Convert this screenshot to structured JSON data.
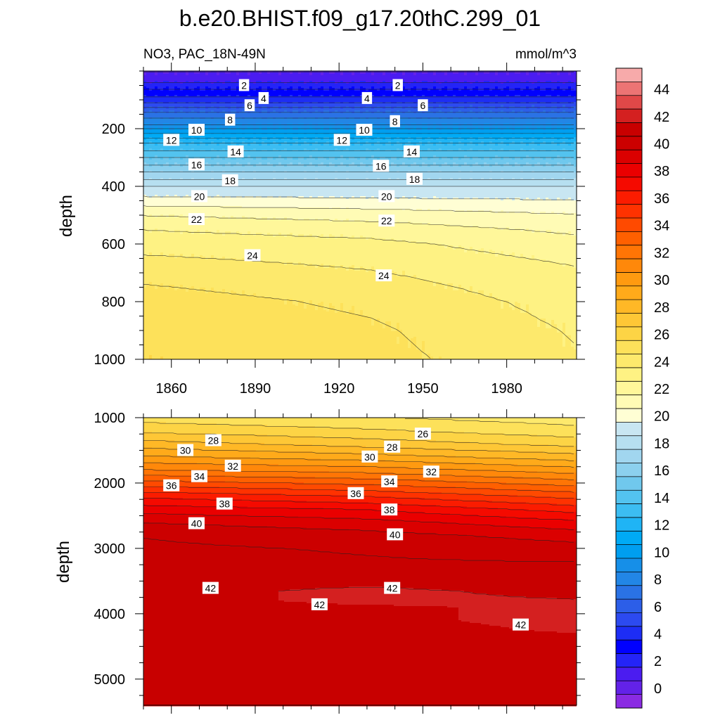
{
  "chart_data": [
    {
      "type": "heatmap",
      "title": "b.e20.BHIST.f09_g17.20thC.299_01",
      "left_subtitle": "NO3, PAC_18N-49N",
      "right_subtitle": "mmol/m^3",
      "xlabel": "",
      "ylabel": "depth",
      "x_ticks": [
        1860,
        1890,
        1920,
        1950,
        1980
      ],
      "xlim": [
        1850,
        2005
      ],
      "y_ticks": [
        200,
        400,
        600,
        800,
        1000
      ],
      "ylim": [
        1000,
        0
      ],
      "contour_interval": 1,
      "contour_labels": [
        {
          "x": 1886,
          "depth": 50,
          "value": "2"
        },
        {
          "x": 1941,
          "depth": 50,
          "value": "2"
        },
        {
          "x": 1893,
          "depth": 95,
          "value": "4"
        },
        {
          "x": 1930,
          "depth": 95,
          "value": "4"
        },
        {
          "x": 1888,
          "depth": 120,
          "value": "6"
        },
        {
          "x": 1950,
          "depth": 120,
          "value": "6"
        },
        {
          "x": 1869,
          "depth": 205,
          "value": "10"
        },
        {
          "x": 1881,
          "depth": 170,
          "value": "8"
        },
        {
          "x": 1929,
          "depth": 205,
          "value": "10"
        },
        {
          "x": 1940,
          "depth": 175,
          "value": "8"
        },
        {
          "x": 1860,
          "depth": 240,
          "value": "12"
        },
        {
          "x": 1921,
          "depth": 240,
          "value": "12"
        },
        {
          "x": 1883,
          "depth": 280,
          "value": "14"
        },
        {
          "x": 1946,
          "depth": 280,
          "value": "14"
        },
        {
          "x": 1869,
          "depth": 325,
          "value": "16"
        },
        {
          "x": 1935,
          "depth": 330,
          "value": "16"
        },
        {
          "x": 1881,
          "depth": 380,
          "value": "18"
        },
        {
          "x": 1947,
          "depth": 375,
          "value": "18"
        },
        {
          "x": 1870,
          "depth": 435,
          "value": "20"
        },
        {
          "x": 1937,
          "depth": 435,
          "value": "20"
        },
        {
          "x": 1869,
          "depth": 515,
          "value": "22"
        },
        {
          "x": 1937,
          "depth": 520,
          "value": "22"
        },
        {
          "x": 1889,
          "depth": 640,
          "value": "24"
        },
        {
          "x": 1936,
          "depth": 710,
          "value": "24"
        }
      ],
      "field": [
        {
          "x": 1850,
          "levels": [
            [
              0,
              1
            ],
            [
              25,
              1.5
            ],
            [
              50,
              2.5
            ],
            [
              75,
              3.5
            ],
            [
              100,
              4.5
            ],
            [
              125,
              6
            ],
            [
              150,
              7.5
            ],
            [
              175,
              8.5
            ],
            [
              200,
              10
            ],
            [
              225,
              11.5
            ],
            [
              250,
              13
            ],
            [
              300,
              15
            ],
            [
              350,
              17
            ],
            [
              400,
              19
            ],
            [
              450,
              20.5
            ],
            [
              500,
              22
            ],
            [
              550,
              23
            ],
            [
              600,
              23.6
            ],
            [
              700,
              24.7
            ],
            [
              800,
              25.5
            ],
            [
              900,
              25.8
            ],
            [
              1000,
              26
            ]
          ]
        },
        {
          "x": 1930,
          "levels": [
            [
              0,
              1
            ],
            [
              25,
              1.5
            ],
            [
              50,
              2.5
            ],
            [
              75,
              3.5
            ],
            [
              100,
              4.5
            ],
            [
              125,
              6
            ],
            [
              150,
              7.5
            ],
            [
              175,
              8.5
            ],
            [
              200,
              10
            ],
            [
              225,
              11.5
            ],
            [
              250,
              13
            ],
            [
              300,
              15
            ],
            [
              350,
              17
            ],
            [
              400,
              19
            ],
            [
              450,
              20.3
            ],
            [
              500,
              21.6
            ],
            [
              550,
              22.6
            ],
            [
              600,
              23.3
            ],
            [
              700,
              24.1
            ],
            [
              800,
              24.8
            ],
            [
              900,
              25.2
            ],
            [
              1000,
              25.4
            ]
          ]
        },
        {
          "x": 2005,
          "levels": [
            [
              0,
              1
            ],
            [
              25,
              1.5
            ],
            [
              50,
              2.5
            ],
            [
              75,
              3.5
            ],
            [
              100,
              4.5
            ],
            [
              125,
              6
            ],
            [
              150,
              7.5
            ],
            [
              175,
              8.5
            ],
            [
              200,
              10
            ],
            [
              225,
              11.5
            ],
            [
              250,
              13
            ],
            [
              300,
              15
            ],
            [
              350,
              17
            ],
            [
              400,
              19
            ],
            [
              450,
              20.1
            ],
            [
              500,
              21.1
            ],
            [
              550,
              21.8
            ],
            [
              600,
              22.4
            ],
            [
              700,
              23.2
            ],
            [
              800,
              23.6
            ],
            [
              900,
              23.9
            ],
            [
              1000,
              24.1
            ]
          ]
        }
      ]
    },
    {
      "type": "heatmap",
      "xlabel": "",
      "ylabel": "depth",
      "x_ticks": [
        1860,
        1890,
        1920,
        1950,
        1980
      ],
      "xlim": [
        1850,
        2005
      ],
      "y_ticks": [
        1000,
        2000,
        3000,
        4000,
        5000
      ],
      "ylim": [
        5400,
        1000
      ],
      "contour_interval": 1,
      "contour_labels": [
        {
          "x": 1950,
          "depth": 1250,
          "value": "26"
        },
        {
          "x": 1875,
          "depth": 1350,
          "value": "28"
        },
        {
          "x": 1939,
          "depth": 1450,
          "value": "28"
        },
        {
          "x": 1865,
          "depth": 1500,
          "value": "30"
        },
        {
          "x": 1931,
          "depth": 1600,
          "value": "30"
        },
        {
          "x": 1882,
          "depth": 1740,
          "value": "32"
        },
        {
          "x": 1953,
          "depth": 1830,
          "value": "32"
        },
        {
          "x": 1870,
          "depth": 1900,
          "value": "34"
        },
        {
          "x": 1938,
          "depth": 1980,
          "value": "34"
        },
        {
          "x": 1860,
          "depth": 2040,
          "value": "36"
        },
        {
          "x": 1926,
          "depth": 2160,
          "value": "36"
        },
        {
          "x": 1879,
          "depth": 2320,
          "value": "38"
        },
        {
          "x": 1938,
          "depth": 2410,
          "value": "38"
        },
        {
          "x": 1869,
          "depth": 2620,
          "value": "40"
        },
        {
          "x": 1940,
          "depth": 2790,
          "value": "40"
        },
        {
          "x": 1874,
          "depth": 3610,
          "value": "42"
        },
        {
          "x": 1939,
          "depth": 3610,
          "value": "42"
        },
        {
          "x": 1913,
          "depth": 3860,
          "value": "42"
        },
        {
          "x": 1985,
          "depth": 4170,
          "value": "42"
        }
      ],
      "field": [
        {
          "x": 1850,
          "levels": [
            [
              1000,
              25.6
            ],
            [
              1200,
              26.8
            ],
            [
              1400,
              28.5
            ],
            [
              1600,
              30.2
            ],
            [
              1800,
              32.1
            ],
            [
              2000,
              34.5
            ],
            [
              2200,
              36.8
            ],
            [
              2400,
              38.6
            ],
            [
              2600,
              40
            ],
            [
              2800,
              40.95
            ],
            [
              3000,
              41.2
            ],
            [
              3500,
              41.5
            ],
            [
              3600,
              41.7
            ],
            [
              4000,
              41.7
            ],
            [
              4500,
              41.5
            ],
            [
              5000,
              41.3
            ],
            [
              5400,
              41.2
            ]
          ]
        },
        {
          "x": 1930,
          "levels": [
            [
              1000,
              25.1
            ],
            [
              1200,
              26.2
            ],
            [
              1400,
              27.6
            ],
            [
              1600,
              29.5
            ],
            [
              1800,
              31.6
            ],
            [
              2000,
              33.8
            ],
            [
              2200,
              36
            ],
            [
              2400,
              38
            ],
            [
              2600,
              39.4
            ],
            [
              2800,
              40.4
            ],
            [
              3000,
              40.9
            ],
            [
              3400,
              41.3
            ],
            [
              3550,
              41.9
            ],
            [
              3650,
              42.2
            ],
            [
              3800,
              42.2
            ],
            [
              3900,
              41.9
            ],
            [
              4200,
              41.7
            ],
            [
              4600,
              41.5
            ],
            [
              5000,
              41.3
            ],
            [
              5400,
              41.2
            ]
          ]
        },
        {
          "x": 2005,
          "levels": [
            [
              1000,
              24.5
            ],
            [
              1200,
              25.4
            ],
            [
              1400,
              26.7
            ],
            [
              1600,
              28.5
            ],
            [
              1800,
              30.5
            ],
            [
              2000,
              32.6
            ],
            [
              2200,
              34.7
            ],
            [
              2400,
              36.6
            ],
            [
              2600,
              38.3
            ],
            [
              2800,
              39.6
            ],
            [
              3000,
              40.4
            ],
            [
              3200,
              41
            ],
            [
              3500,
              41.45
            ],
            [
              3800,
              42.05
            ],
            [
              4100,
              42.3
            ],
            [
              4250,
              42.1
            ],
            [
              4350,
              41.9
            ],
            [
              4700,
              41.6
            ],
            [
              5000,
              41.4
            ],
            [
              5400,
              41.2
            ]
          ]
        }
      ]
    }
  ],
  "colorbar": {
    "orientation": "vertical",
    "levels": [
      -1,
      0,
      1,
      2,
      3,
      4,
      5,
      6,
      7,
      8,
      9,
      10,
      11,
      12,
      13,
      14,
      15,
      16,
      17,
      18,
      19,
      20,
      21,
      22,
      23,
      24,
      25,
      26,
      27,
      28,
      29,
      30,
      31,
      32,
      33,
      34,
      35,
      36,
      37,
      38,
      39,
      40,
      41,
      42,
      43,
      44,
      45,
      46
    ],
    "tick_labels": [
      "0",
      "2",
      "4",
      "6",
      "8",
      "10",
      "12",
      "14",
      "16",
      "18",
      "20",
      "22",
      "24",
      "26",
      "28",
      "30",
      "32",
      "34",
      "36",
      "38",
      "40",
      "42",
      "44"
    ],
    "colors": [
      "#8a2be2",
      "#6322e8",
      "#4b1cf0",
      "#2424f7",
      "#0000ff",
      "#1d2df5",
      "#2c4af0",
      "#2c5ee8",
      "#2a72e5",
      "#2286e6",
      "#168fe8",
      "#009ef0",
      "#00aaf5",
      "#1fb4f5",
      "#3cbdf2",
      "#53c3ef",
      "#70c8ed",
      "#8cd0ee",
      "#a1d6ef",
      "#b6dff0",
      "#c8e6f2",
      "#fffed4",
      "#fffbb5",
      "#fff79a",
      "#fef283",
      "#fde96c",
      "#fde15a",
      "#fdd445",
      "#fec736",
      "#ffb826",
      "#ffaa1a",
      "#ff9a10",
      "#ff880a",
      "#ff7505",
      "#ff6000",
      "#ff4a00",
      "#ff3200",
      "#fb1c00",
      "#f50a00",
      "#ea0000",
      "#db0000",
      "#cc0000",
      "#c80000",
      "#d42020",
      "#e04848",
      "#ec7474",
      "#f7aaaa"
    ]
  }
}
